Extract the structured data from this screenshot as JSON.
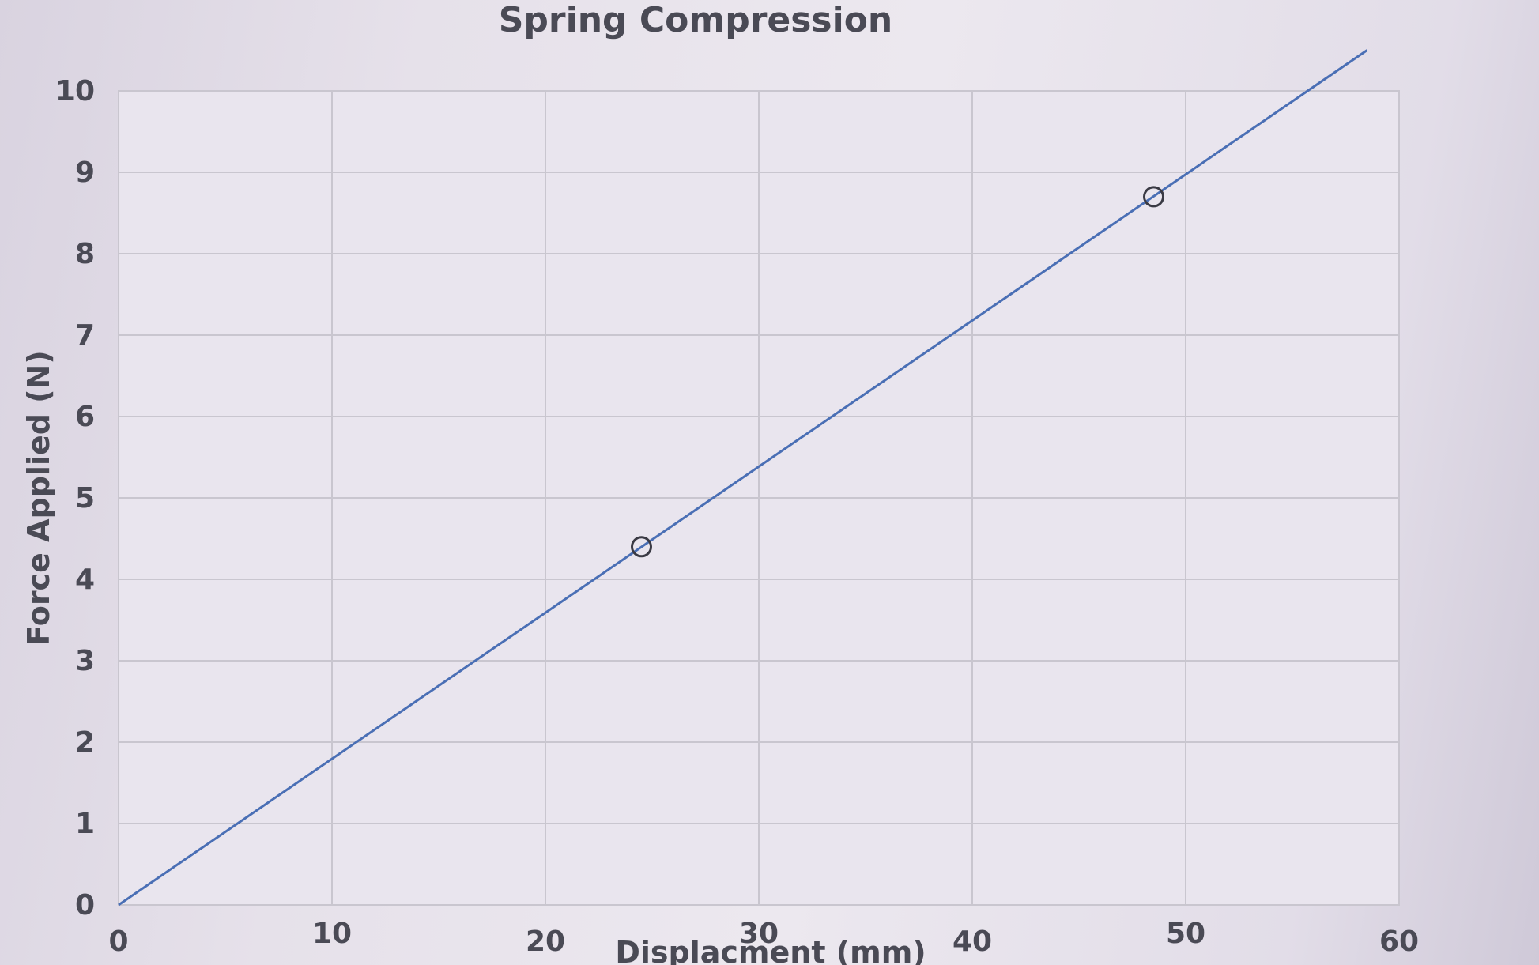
{
  "chart_data": {
    "type": "line",
    "title": "Spring Compression",
    "xlabel": "Displacment (mm)",
    "ylabel": "Force Applied (N)",
    "xlim": [
      0,
      60
    ],
    "ylim": [
      0,
      10
    ],
    "x_ticks": [
      "0",
      "10",
      "20",
      "30",
      "40",
      "50",
      "60"
    ],
    "y_ticks": [
      "0",
      "1",
      "2",
      "3",
      "4",
      "5",
      "6",
      "7",
      "8",
      "9",
      "10"
    ],
    "grid": true,
    "legend": "none",
    "series": [
      {
        "color": "#4a6fb5",
        "x": [
          0,
          58.5
        ],
        "y": [
          0,
          10.5
        ]
      }
    ],
    "annotations": [
      {
        "type": "circle",
        "x": 24.5,
        "y": 4.4
      },
      {
        "type": "circle",
        "x": 48.5,
        "y": 8.7
      }
    ]
  }
}
